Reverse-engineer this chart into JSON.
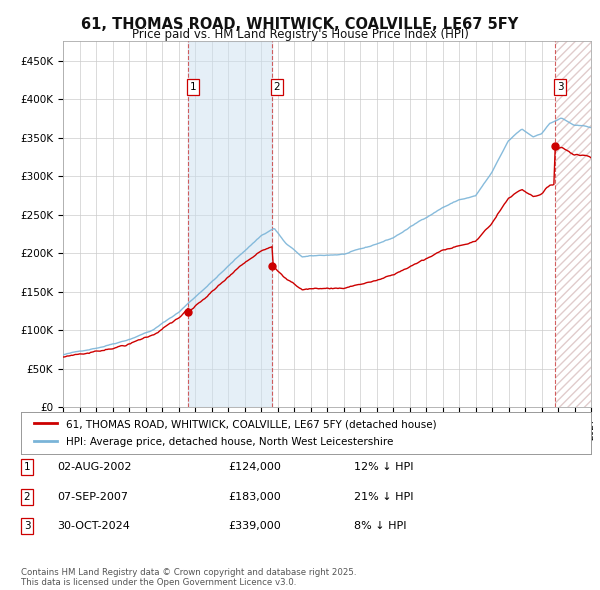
{
  "title": "61, THOMAS ROAD, WHITWICK, COALVILLE, LE67 5FY",
  "subtitle": "Price paid vs. HM Land Registry's House Price Index (HPI)",
  "ylim": [
    0,
    475000
  ],
  "yticks": [
    0,
    50000,
    100000,
    150000,
    200000,
    250000,
    300000,
    350000,
    400000,
    450000
  ],
  "ytick_labels": [
    "£0",
    "£50K",
    "£100K",
    "£150K",
    "£200K",
    "£250K",
    "£300K",
    "£350K",
    "£400K",
    "£450K"
  ],
  "hpi_color": "#7ab4d8",
  "price_color": "#cc0000",
  "bg_color": "#ffffff",
  "plot_bg": "#ffffff",
  "grid_color": "#cccccc",
  "transactions": [
    {
      "date_float": 2002.58,
      "price": 124000,
      "label": "1"
    },
    {
      "date_float": 2007.67,
      "price": 183000,
      "label": "2"
    },
    {
      "date_float": 2024.83,
      "price": 339000,
      "label": "3"
    }
  ],
  "transaction_info": [
    {
      "num": "1",
      "date": "02-AUG-2002",
      "price": "£124,000",
      "hpi_diff": "12% ↓ HPI"
    },
    {
      "num": "2",
      "date": "07-SEP-2007",
      "price": "£183,000",
      "hpi_diff": "21% ↓ HPI"
    },
    {
      "num": "3",
      "date": "30-OCT-2024",
      "price": "£339,000",
      "hpi_diff": "8% ↓ HPI"
    }
  ],
  "legend_entries": [
    "61, THOMAS ROAD, WHITWICK, COALVILLE, LE67 5FY (detached house)",
    "HPI: Average price, detached house, North West Leicestershire"
  ],
  "footer": "Contains HM Land Registry data © Crown copyright and database right 2025.\nThis data is licensed under the Open Government Licence v3.0.",
  "xmin": 1995.0,
  "xmax": 2027.0
}
